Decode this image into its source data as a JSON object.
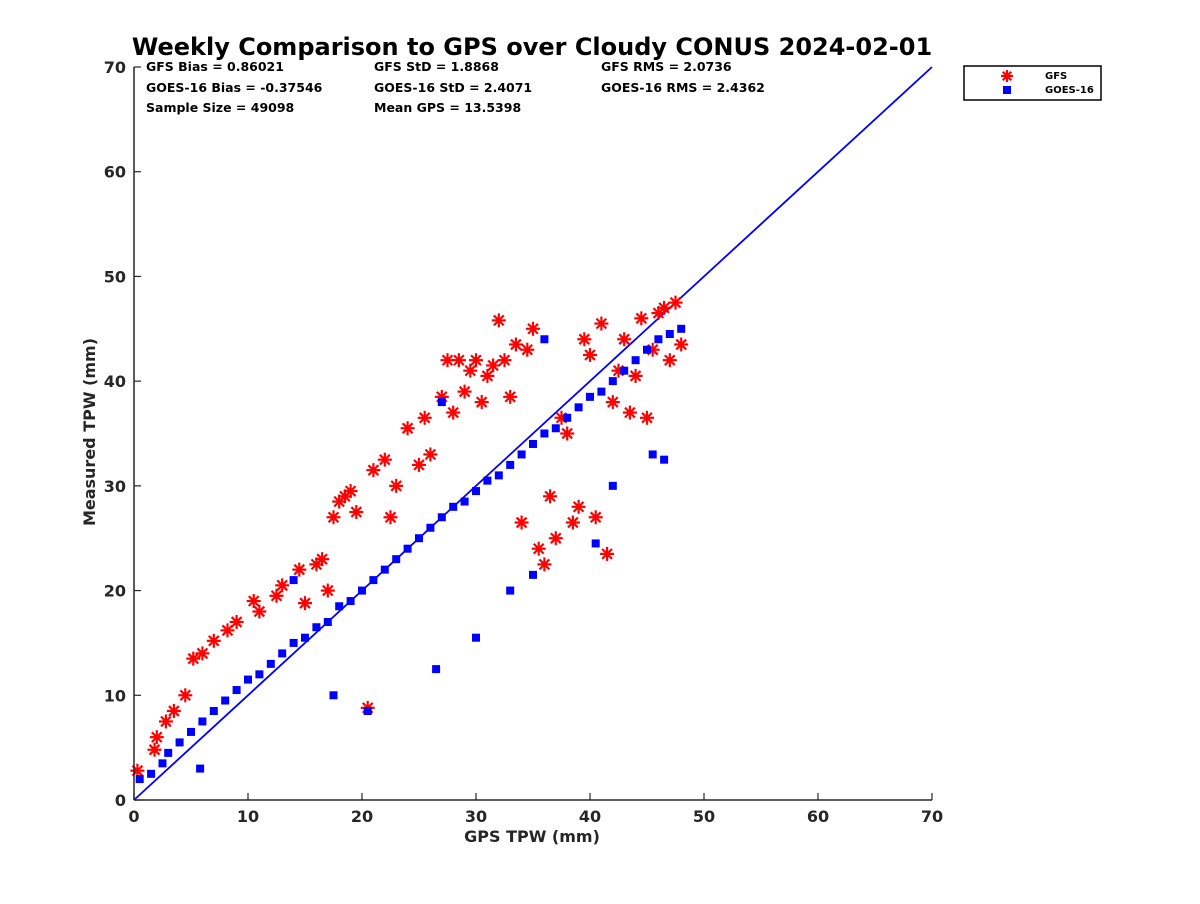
{
  "chart_data": {
    "type": "scatter",
    "title": "Weekly Comparison to GPS over Cloudy CONUS 2024-02-01",
    "xlabel": "GPS TPW (mm)",
    "ylabel": "Measured TPW (mm)",
    "xlim": [
      0,
      70
    ],
    "ylim": [
      0,
      70
    ],
    "xticks": [
      "0",
      "10",
      "20",
      "30",
      "40",
      "50",
      "60",
      "70"
    ],
    "yticks": [
      "0",
      "10",
      "20",
      "30",
      "40",
      "50",
      "60",
      "70"
    ],
    "grid": false,
    "legend_position": "top-right outside",
    "stats": [
      [
        "GFS Bias = 0.86021",
        "GFS StD = 1.8868",
        "GFS RMS = 2.0736"
      ],
      [
        "GOES-16 Bias = -0.37546",
        "GOES-16 StD = 2.4071",
        "GOES-16 RMS = 2.4362"
      ],
      [
        "Sample Size = 49098",
        "Mean GPS = 13.5398"
      ]
    ],
    "reference_line": {
      "x": [
        0,
        70
      ],
      "y": [
        0,
        70
      ],
      "color": "#0000ff"
    },
    "series": [
      {
        "name": "GFS",
        "marker": "asterisk",
        "color": "#ff0000",
        "x": [
          0.3,
          1.8,
          2.0,
          2.8,
          3.5,
          4.5,
          5.2,
          6.0,
          7.0,
          8.2,
          9.0,
          10.5,
          11.0,
          12.5,
          13.0,
          14.5,
          15.0,
          16.0,
          16.5,
          17.0,
          17.5,
          18.0,
          18.5,
          19.0,
          19.5,
          20.5,
          21.0,
          22.0,
          22.5,
          23.0,
          24.0,
          25.0,
          25.5,
          26.0,
          27.0,
          27.5,
          28.0,
          28.5,
          29.0,
          29.5,
          30.0,
          30.5,
          31.0,
          31.5,
          32.0,
          32.5,
          33.0,
          33.5,
          34.0,
          34.5,
          35.0,
          35.5,
          36.0,
          36.5,
          37.0,
          37.5,
          38.0,
          38.5,
          39.0,
          39.5,
          40.0,
          40.5,
          41.0,
          41.5,
          42.0,
          42.5,
          43.0,
          43.5,
          44.0,
          44.5,
          45.0,
          45.5,
          46.0,
          46.5,
          47.0,
          47.5,
          48.0
        ],
        "y": [
          2.8,
          4.8,
          6.0,
          7.5,
          8.5,
          10.0,
          13.5,
          14.0,
          15.2,
          16.2,
          17.0,
          19.0,
          18.0,
          19.5,
          20.5,
          22.0,
          18.8,
          22.5,
          23.0,
          20.0,
          27.0,
          28.5,
          29.0,
          29.5,
          27.5,
          8.8,
          31.5,
          32.5,
          27.0,
          30.0,
          35.5,
          32.0,
          36.5,
          33.0,
          38.5,
          42.0,
          37.0,
          42.0,
          39.0,
          41.0,
          42.0,
          38.0,
          40.5,
          41.5,
          45.8,
          42.0,
          38.5,
          43.5,
          26.5,
          43.0,
          45.0,
          24.0,
          22.5,
          29.0,
          25.0,
          36.5,
          35.0,
          26.5,
          28.0,
          44.0,
          42.5,
          27.0,
          45.5,
          23.5,
          38.0,
          41.0,
          44.0,
          37.0,
          40.5,
          46.0,
          36.5,
          43.0,
          46.5,
          47.0,
          42.0,
          47.5,
          43.5
        ]
      },
      {
        "name": "GOES-16",
        "marker": "square",
        "color": "#0000ff",
        "x": [
          0.5,
          1.5,
          2.5,
          3.0,
          4.0,
          5.0,
          6.0,
          7.0,
          8.0,
          9.0,
          10.0,
          11.0,
          12.0,
          13.0,
          14.0,
          15.0,
          16.0,
          17.0,
          18.0,
          19.0,
          20.0,
          21.0,
          22.0,
          23.0,
          24.0,
          25.0,
          26.0,
          27.0,
          28.0,
          29.0,
          30.0,
          31.0,
          32.0,
          33.0,
          34.0,
          35.0,
          36.0,
          37.0,
          38.0,
          39.0,
          40.0,
          41.0,
          42.0,
          43.0,
          44.0,
          45.0,
          46.0,
          47.0,
          48.0,
          5.8,
          14.0,
          17.5,
          20.5,
          26.5,
          27.0,
          30.0,
          33.0,
          35.0,
          36.0,
          40.5,
          42.0,
          45.5,
          46.5
        ],
        "y": [
          2.0,
          2.5,
          3.5,
          4.5,
          5.5,
          6.5,
          7.5,
          8.5,
          9.5,
          10.5,
          11.5,
          12.0,
          13.0,
          14.0,
          15.0,
          15.5,
          16.5,
          17.0,
          18.5,
          19.0,
          20.0,
          21.0,
          22.0,
          23.0,
          24.0,
          25.0,
          26.0,
          27.0,
          28.0,
          28.5,
          29.5,
          30.5,
          31.0,
          32.0,
          33.0,
          34.0,
          35.0,
          35.5,
          36.5,
          37.5,
          38.5,
          39.0,
          40.0,
          41.0,
          42.0,
          43.0,
          44.0,
          44.5,
          45.0,
          3.0,
          21.0,
          10.0,
          8.5,
          12.5,
          38.0,
          15.5,
          20.0,
          21.5,
          44.0,
          24.5,
          30.0,
          33.0,
          32.5
        ]
      }
    ]
  }
}
